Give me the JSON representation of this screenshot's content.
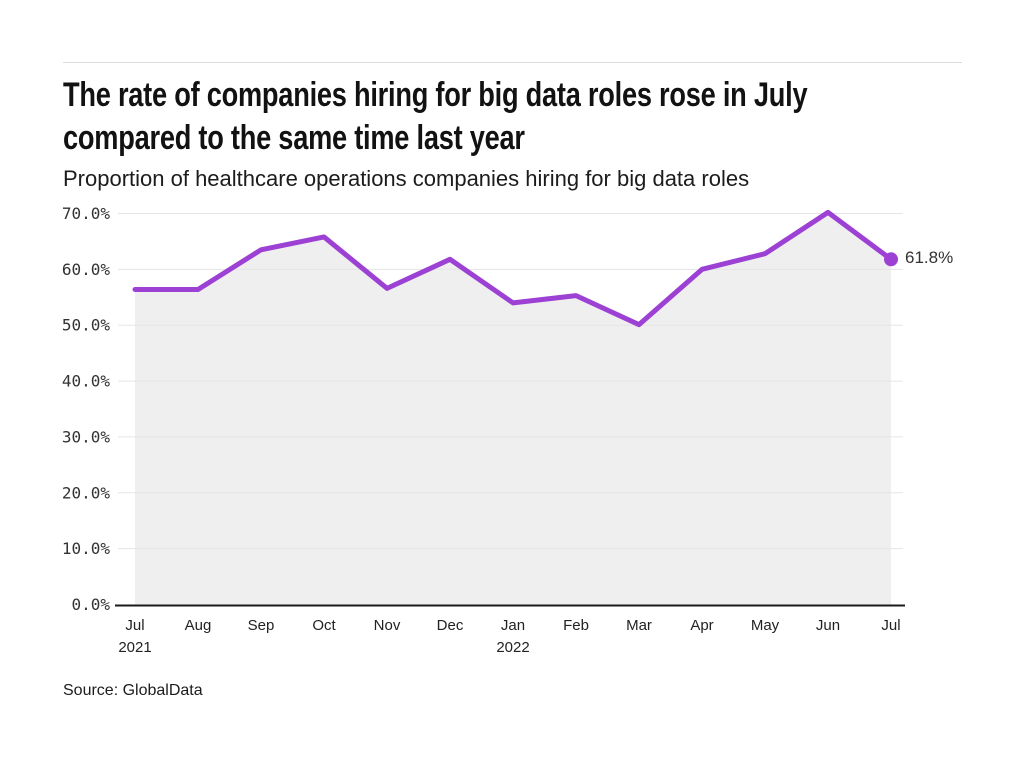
{
  "page": {
    "source_label": "Source: GlobalData"
  },
  "chart_data": {
    "type": "line",
    "title": "The rate of companies hiring for big data roles rose in July compared to the same time last year",
    "title_lines": [
      "The rate of companies hiring for big data roles rose in July",
      "compared to the same time last year"
    ],
    "subtitle": "Proportion of healthcare operations companies hiring for big data roles",
    "months": [
      "Jul",
      "Aug",
      "Sep",
      "Oct",
      "Nov",
      "Dec",
      "Jan",
      "Feb",
      "Mar",
      "Apr",
      "May",
      "Jun",
      "Jul"
    ],
    "year_marks": [
      {
        "index": 0,
        "label": "2021"
      },
      {
        "index": 6,
        "label": "2022"
      }
    ],
    "values": [
      56.4,
      56.4,
      63.5,
      65.8,
      56.6,
      61.8,
      54.0,
      55.3,
      50.1,
      60.0,
      62.8,
      70.2,
      61.8
    ],
    "unit": "%",
    "ylim": [
      0,
      70
    ],
    "yticks": [
      "0.0%",
      "10.0%",
      "20.0%",
      "30.0%",
      "40.0%",
      "50.0%",
      "60.0%",
      "70.0%"
    ],
    "grid": true,
    "legend": false,
    "last_point_label": "61.8%",
    "colors": {
      "line": "#9c41d4",
      "fill": "#efefef",
      "grid": "#e5e5e5",
      "axis": "#1a1a1a",
      "tick_text": "#333333",
      "label_text": "#222222"
    }
  }
}
